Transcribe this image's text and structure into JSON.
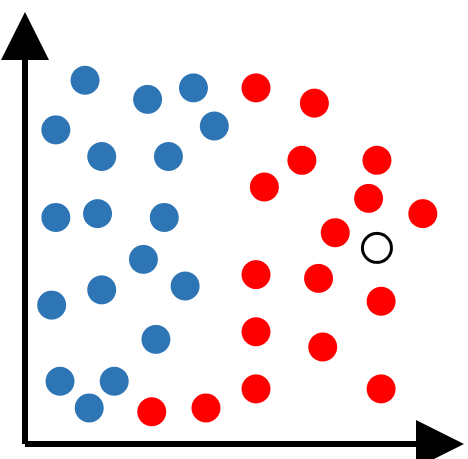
{
  "chart_data": {
    "type": "scatter",
    "title": "",
    "xlabel": "",
    "ylabel": "",
    "xlim": [
      0,
      100
    ],
    "ylim": [
      0,
      100
    ],
    "grid": false,
    "legend": "none",
    "axis_color": "#000000",
    "series": [
      {
        "color": "#2E75B6",
        "points": [
          [
            12,
            91
          ],
          [
            27,
            86
          ],
          [
            38,
            89
          ],
          [
            5,
            78
          ],
          [
            43,
            79
          ],
          [
            16,
            71
          ],
          [
            32,
            71
          ],
          [
            5,
            55
          ],
          [
            15,
            56
          ],
          [
            31,
            55
          ],
          [
            26,
            44
          ],
          [
            16,
            36
          ],
          [
            36,
            37
          ],
          [
            4,
            32
          ],
          [
            29,
            23
          ],
          [
            6,
            12
          ],
          [
            19,
            12
          ],
          [
            13,
            5
          ]
        ]
      },
      {
        "color": "#FF0000",
        "points": [
          [
            53,
            89
          ],
          [
            67,
            85
          ],
          [
            64,
            70
          ],
          [
            82,
            70
          ],
          [
            55,
            63
          ],
          [
            80,
            60
          ],
          [
            93,
            56
          ],
          [
            72,
            51
          ],
          [
            53,
            40
          ],
          [
            68,
            39
          ],
          [
            83,
            33
          ],
          [
            53,
            25
          ],
          [
            69,
            21
          ],
          [
            53,
            10
          ],
          [
            83,
            10
          ],
          [
            28,
            4
          ],
          [
            41,
            5
          ]
        ]
      },
      {
        "color": "#FFFFFF",
        "stroke": "#000000",
        "points": [
          [
            82,
            47
          ]
        ]
      }
    ]
  }
}
